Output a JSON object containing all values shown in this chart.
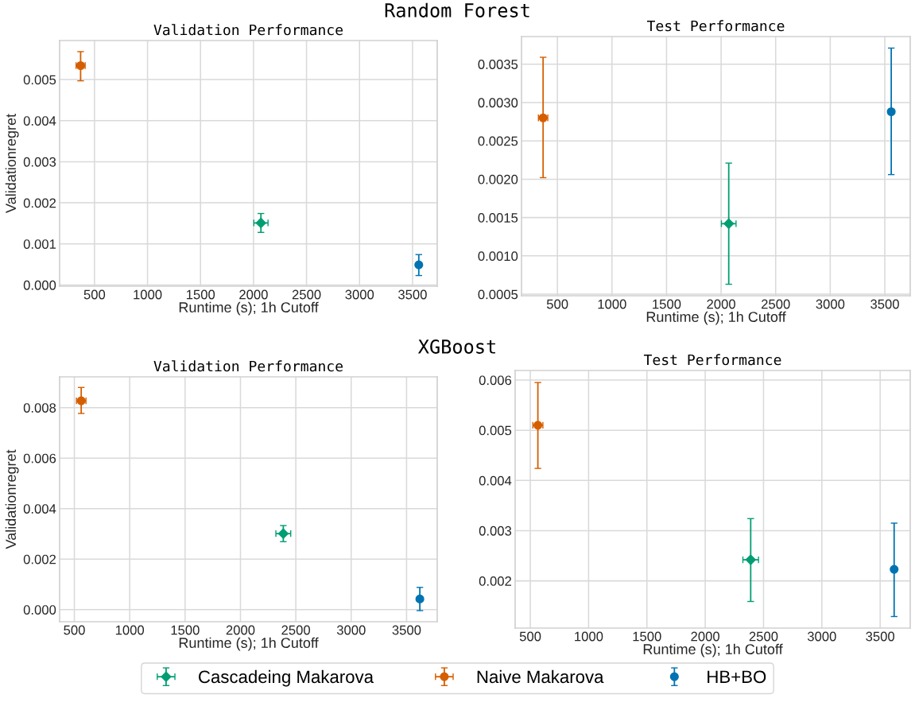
{
  "chart_data": [
    {
      "type": "scatter",
      "title": "Validation Performance",
      "xlabel": "Runtime (s); 1h Cutoff",
      "ylabel": "Validationregret",
      "annotations": [
        "Random Forest"
      ],
      "grid": true,
      "legend": "bottom",
      "xlim": [
        171,
        3733
      ],
      "xticks": [
        500,
        1000,
        1500,
        2000,
        2500,
        3000,
        3500
      ],
      "ylim": [
        -3e-05,
        0.00595
      ],
      "yticks": [
        {
          "value": 0,
          "label": "0.000"
        },
        0.001,
        0.002,
        0.003,
        0.004,
        0.005
      ],
      "series": [
        {
          "name": "Cascadeing Makarova",
          "color": "#029e73",
          "marker": "diamond",
          "x": [
            2070
          ],
          "values": [
            0.00151
          ],
          "errors": [
            [
              0.00128,
              0.00174
            ]
          ],
          "xerrors": [
            67
          ]
        },
        {
          "name": "Naive Makarova",
          "color": "#d55e00",
          "marker": "circle",
          "x": [
            369
          ],
          "values": [
            0.00534
          ],
          "errors": [
            [
              0.00497,
              0.00568
            ]
          ],
          "xerrors": [
            43
          ]
        },
        {
          "name": "HB+BO",
          "color": "#0173b2",
          "marker": "circle",
          "x": [
            3559
          ],
          "values": [
            0.00049
          ],
          "errors": [
            [
              0.00023,
              0.00074
            ]
          ],
          "xerrors": [
            null
          ]
        }
      ]
    },
    {
      "type": "scatter",
      "title": "Test Performance",
      "xlabel": "Runtime (s); 1h Cutoff",
      "grid": true,
      "xlim": [
        171,
        3733
      ],
      "xticks": [
        500,
        1000,
        1500,
        2000,
        2500,
        3000,
        3500
      ],
      "ylim": [
        0.00048,
        0.00386
      ],
      "yticks": [
        0.0005,
        {
          "value": 0.001,
          "label": "0.0010"
        },
        0.0015,
        {
          "value": 0.002,
          "label": "0.0020"
        },
        0.0025,
        {
          "value": 0.003,
          "label": "0.0030"
        },
        0.0035
      ],
      "series": [
        {
          "color": "#029e73",
          "marker": "diamond",
          "x": [
            2070
          ],
          "values": [
            0.00142
          ],
          "errors": [
            [
              0.00063,
              0.00221
            ]
          ],
          "xerrors": [
            67
          ]
        },
        {
          "color": "#d55e00",
          "marker": "circle",
          "x": [
            369
          ],
          "values": [
            0.0028
          ],
          "errors": [
            [
              0.00202,
              0.00359
            ]
          ],
          "xerrors": [
            43
          ]
        },
        {
          "color": "#0173b2",
          "marker": "circle",
          "x": [
            3559
          ],
          "values": [
            0.00288
          ],
          "errors": [
            [
              0.00206,
              0.00371
            ]
          ],
          "xerrors": [
            null
          ]
        }
      ]
    },
    {
      "type": "scatter",
      "title": "Validation Performance",
      "xlabel": "Runtime (s); 1h Cutoff",
      "ylabel": "Validationregret",
      "annotations": [
        "XGBoost"
      ],
      "grid": true,
      "xlim": [
        367,
        3777
      ],
      "xticks": [
        500,
        1000,
        1500,
        2000,
        2500,
        3000,
        3500
      ],
      "ylim": [
        -0.00048,
        0.00922
      ],
      "yticks": [
        {
          "value": 0,
          "label": "0.000"
        },
        0.002,
        0.004,
        0.006,
        0.008
      ],
      "series": [
        {
          "color": "#029e73",
          "marker": "diamond",
          "x": [
            2387
          ],
          "values": [
            0.00301
          ],
          "errors": [
            [
              0.00269,
              0.00333
            ]
          ],
          "xerrors": [
            67
          ]
        },
        {
          "color": "#d55e00",
          "marker": "circle",
          "x": [
            562
          ],
          "values": [
            0.00827
          ],
          "errors": [
            [
              0.00777,
              0.0088
            ]
          ],
          "xerrors": [
            43
          ]
        },
        {
          "color": "#0173b2",
          "marker": "circle",
          "x": [
            3620
          ],
          "values": [
            0.00042
          ],
          "errors": [
            [
              -4e-05,
              0.00088
            ]
          ],
          "xerrors": [
            null
          ]
        }
      ]
    },
    {
      "type": "scatter",
      "title": "Test Performance",
      "xlabel": "Runtime (s); 1h Cutoff",
      "grid": true,
      "xlim": [
        370,
        3758
      ],
      "xticks": [
        500,
        1000,
        1500,
        2000,
        2500,
        3000,
        3500
      ],
      "ylim": [
        0.00106,
        0.00619
      ],
      "yticks": [
        0.002,
        0.003,
        0.004,
        0.005,
        0.006
      ],
      "series": [
        {
          "color": "#029e73",
          "marker": "diamond",
          "x": [
            2390
          ],
          "values": [
            0.00242
          ],
          "errors": [
            [
              0.00159,
              0.00324
            ]
          ],
          "xerrors": [
            67
          ]
        },
        {
          "color": "#d55e00",
          "marker": "circle",
          "x": [
            565
          ],
          "values": [
            0.0051
          ],
          "errors": [
            [
              0.00424,
              0.00595
            ]
          ],
          "xerrors": [
            43
          ]
        },
        {
          "color": "#0173b2",
          "marker": "circle",
          "x": [
            3620
          ],
          "values": [
            0.00223
          ],
          "errors": [
            [
              0.00129,
              0.00315
            ]
          ],
          "xerrors": [
            null
          ]
        }
      ]
    }
  ]
}
